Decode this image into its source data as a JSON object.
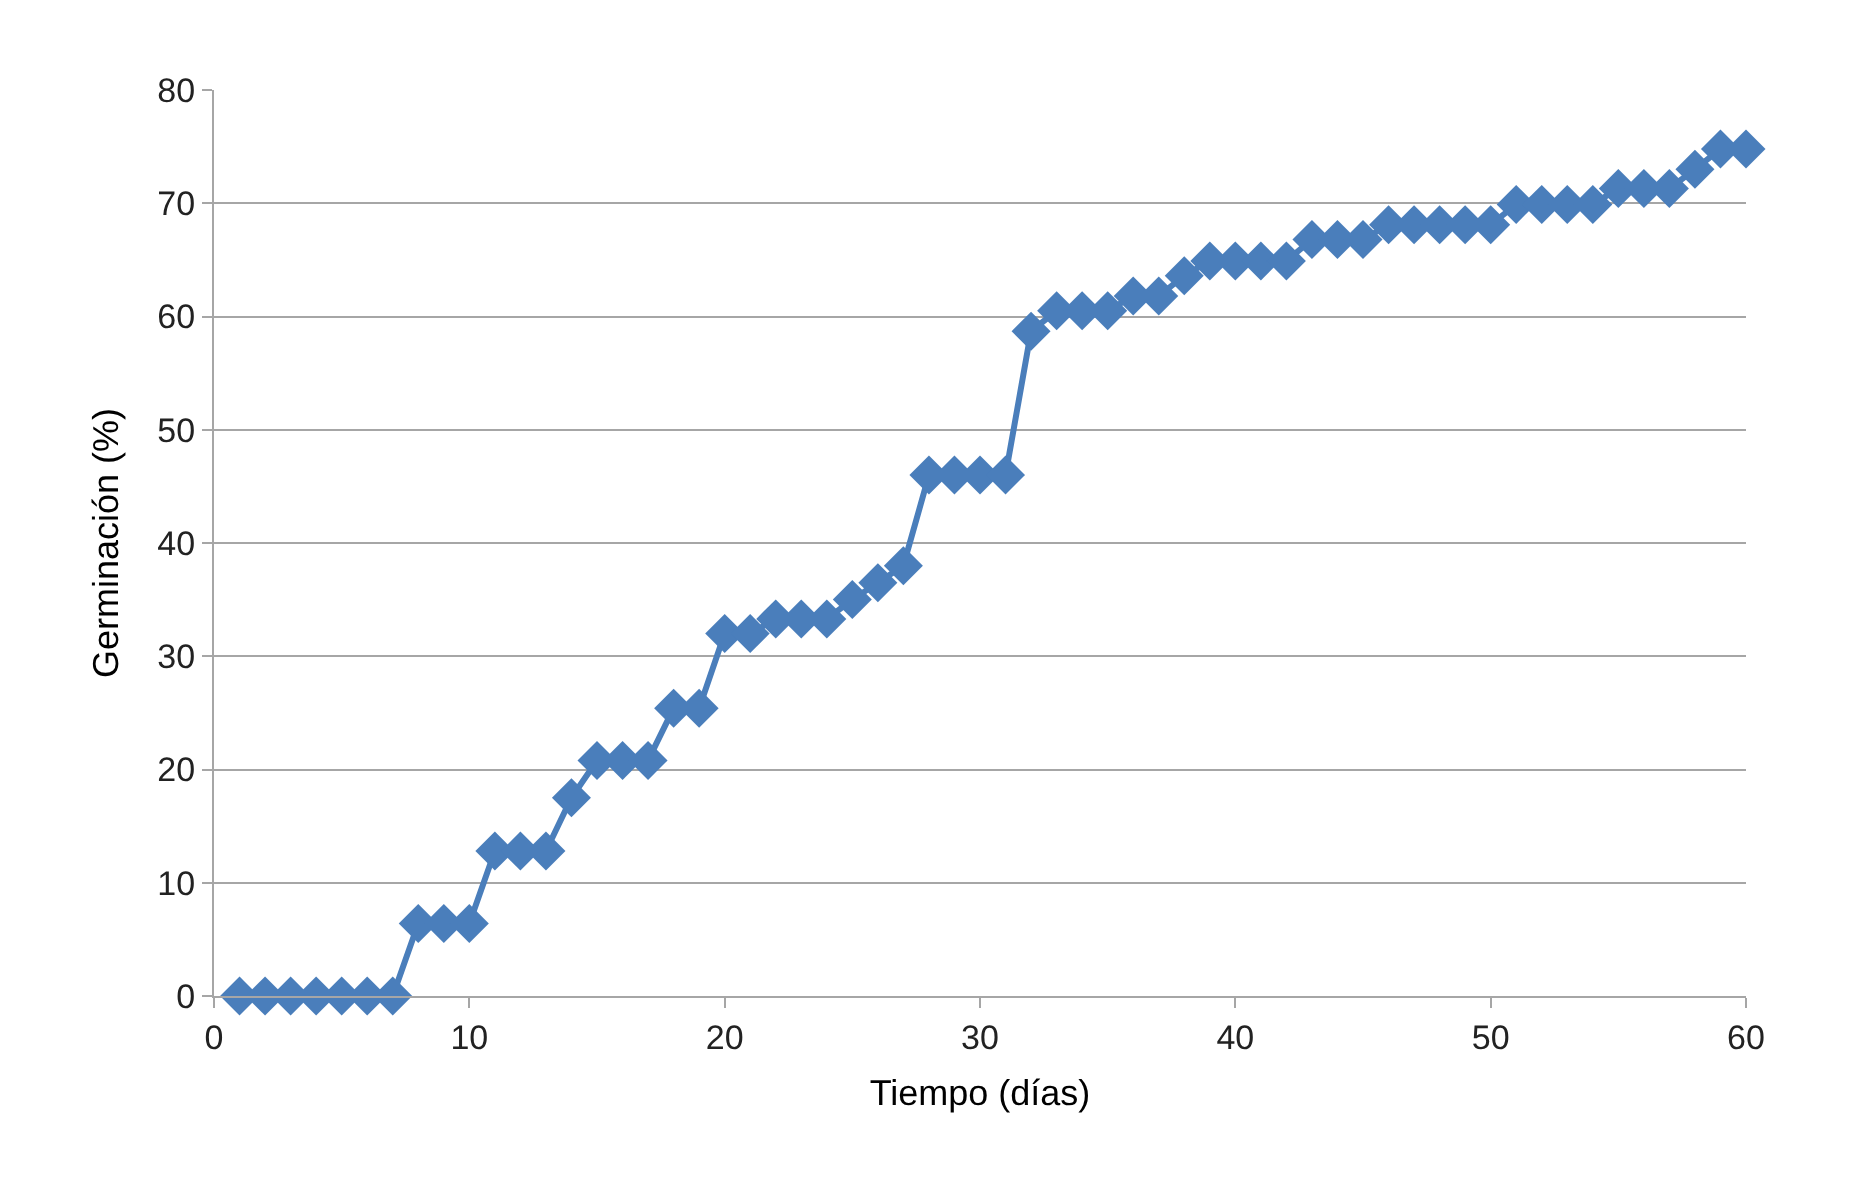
{
  "chart_data": {
    "type": "line",
    "xlabel": "Tiempo (días)",
    "ylabel": "Germinación (%)",
    "x": [
      1,
      2,
      3,
      4,
      5,
      6,
      7,
      8,
      9,
      10,
      11,
      12,
      13,
      14,
      15,
      16,
      17,
      18,
      19,
      20,
      21,
      22,
      23,
      24,
      25,
      26,
      27,
      28,
      29,
      30,
      31,
      32,
      33,
      34,
      35,
      36,
      37,
      38,
      39,
      40,
      41,
      42,
      43,
      44,
      45,
      46,
      47,
      48,
      49,
      50,
      51,
      52,
      53,
      54,
      55,
      56,
      57,
      58,
      59,
      60
    ],
    "series": [
      {
        "color": "#4a7ebb",
        "values": [
          0,
          0,
          0,
          0,
          0,
          0,
          0,
          6.4,
          6.4,
          6.4,
          12.8,
          12.8,
          12.8,
          17.5,
          20.8,
          20.8,
          20.8,
          25.4,
          25.4,
          32,
          32,
          33.3,
          33.3,
          33.3,
          35,
          36.5,
          38,
          46,
          46,
          46,
          46,
          58.7,
          60.5,
          60.5,
          60.5,
          61.8,
          61.8,
          63.6,
          64.9,
          64.9,
          64.9,
          64.9,
          66.8,
          66.8,
          66.8,
          68.1,
          68.1,
          68.1,
          68.1,
          68.1,
          69.9,
          69.9,
          69.9,
          69.9,
          71.3,
          71.3,
          71.3,
          73,
          74.8,
          74.8
        ]
      }
    ],
    "xlim": [
      0,
      60
    ],
    "xticks": [
      0,
      10,
      20,
      30,
      40,
      50,
      60
    ],
    "ylim": [
      0,
      80
    ],
    "yticks": [
      0,
      10,
      20,
      30,
      40,
      50,
      60,
      70,
      80
    ],
    "grid": "y",
    "marker": "diamond",
    "line_style": "solid"
  }
}
